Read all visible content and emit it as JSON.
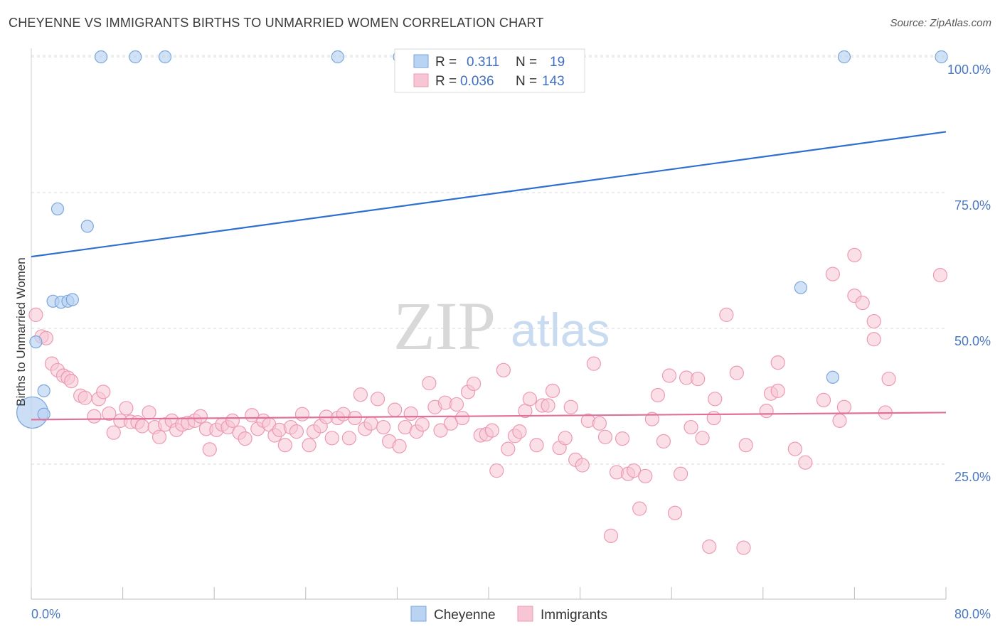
{
  "header": {
    "title": "CHEYENNE VS IMMIGRANTS BIRTHS TO UNMARRIED WOMEN CORRELATION CHART",
    "source": "Source: ZipAtlas.com"
  },
  "watermark": {
    "part1": "ZIP",
    "part2": "atlas"
  },
  "legend": {
    "r_label": "R =",
    "n_label": "N =",
    "rows": [
      {
        "r": "0.311",
        "n": "19"
      },
      {
        "r": "0.036",
        "n": "143"
      }
    ],
    "bottom": [
      "Cheyenne",
      "Immigrants"
    ]
  },
  "colors": {
    "blue_fill": "#b9d3f2",
    "blue_stroke": "#7aa6dc",
    "blue_line": "#2f6fcf",
    "pink_fill": "#f8c5d4",
    "pink_stroke": "#ec9ab5",
    "pink_line": "#e0709a",
    "tick_text": "#4a78c2"
  },
  "chart_data": {
    "type": "scatter",
    "title": "CHEYENNE VS IMMIGRANTS BIRTHS TO UNMARRIED WOMEN CORRELATION CHART",
    "xlabel": "",
    "ylabel": "Births to Unmarried Women",
    "xlim": [
      0,
      80
    ],
    "ylim": [
      0,
      102
    ],
    "x_tick_labels": [
      "0.0%",
      "80.0%"
    ],
    "y_ticks": [
      25,
      50,
      75,
      100
    ],
    "y_tick_labels": [
      "25.0%",
      "50.0%",
      "75.0%",
      "100.0%"
    ],
    "grid": "horizontal dashed",
    "legend_position": "top-center",
    "series": [
      {
        "name": "Cheyenne",
        "r": 0.311,
        "n": 19,
        "trend": {
          "x": [
            0,
            80
          ],
          "y": [
            63.2,
            86.2
          ]
        },
        "points": [
          [
            0.1,
            34.5
          ],
          [
            0.4,
            47.5
          ],
          [
            1.1,
            34.2
          ],
          [
            1.1,
            38.5
          ],
          [
            1.9,
            55.0
          ],
          [
            2.3,
            72.0
          ],
          [
            2.6,
            54.8
          ],
          [
            3.2,
            55.0
          ],
          [
            3.6,
            55.3
          ],
          [
            4.9,
            68.8
          ],
          [
            6.1,
            100.0
          ],
          [
            9.1,
            100.0
          ],
          [
            11.7,
            100.0
          ],
          [
            26.8,
            100.0
          ],
          [
            32.2,
            100.0
          ],
          [
            67.3,
            57.5
          ],
          [
            70.1,
            41.0
          ],
          [
            71.1,
            100.0
          ],
          [
            79.6,
            100.0
          ]
        ],
        "big_point": [
          0.1,
          34.5
        ]
      },
      {
        "name": "Immigrants",
        "r": 0.036,
        "n": 143,
        "trend": {
          "x": [
            0,
            80
          ],
          "y": [
            33.2,
            34.5
          ]
        },
        "points": [
          [
            0.4,
            52.5
          ],
          [
            0.9,
            48.5
          ],
          [
            1.3,
            48.2
          ],
          [
            1.8,
            43.5
          ],
          [
            2.3,
            42.3
          ],
          [
            2.8,
            41.3
          ],
          [
            3.2,
            40.9
          ],
          [
            3.5,
            40.3
          ],
          [
            4.3,
            37.6
          ],
          [
            4.7,
            37.2
          ],
          [
            5.5,
            33.8
          ],
          [
            5.9,
            37.0
          ],
          [
            6.3,
            38.3
          ],
          [
            6.8,
            34.3
          ],
          [
            7.2,
            30.8
          ],
          [
            7.8,
            33.0
          ],
          [
            8.3,
            35.3
          ],
          [
            8.7,
            32.8
          ],
          [
            9.3,
            32.7
          ],
          [
            9.7,
            32.0
          ],
          [
            10.3,
            34.5
          ],
          [
            10.8,
            31.8
          ],
          [
            11.2,
            30.0
          ],
          [
            11.7,
            32.3
          ],
          [
            12.3,
            33.0
          ],
          [
            12.7,
            31.3
          ],
          [
            13.2,
            32.3
          ],
          [
            13.7,
            32.6
          ],
          [
            14.3,
            33.0
          ],
          [
            14.8,
            33.8
          ],
          [
            15.3,
            31.5
          ],
          [
            15.6,
            27.7
          ],
          [
            16.2,
            31.3
          ],
          [
            16.7,
            32.3
          ],
          [
            17.2,
            31.8
          ],
          [
            17.6,
            33.0
          ],
          [
            18.2,
            30.8
          ],
          [
            18.7,
            29.7
          ],
          [
            19.3,
            34.0
          ],
          [
            19.8,
            31.5
          ],
          [
            20.3,
            33.0
          ],
          [
            20.8,
            32.3
          ],
          [
            21.3,
            30.3
          ],
          [
            21.7,
            31.3
          ],
          [
            22.2,
            28.5
          ],
          [
            22.7,
            31.8
          ],
          [
            23.2,
            31.0
          ],
          [
            23.7,
            34.2
          ],
          [
            24.3,
            28.5
          ],
          [
            24.7,
            31.0
          ],
          [
            25.3,
            32.0
          ],
          [
            25.8,
            33.7
          ],
          [
            26.3,
            29.8
          ],
          [
            26.8,
            33.5
          ],
          [
            27.3,
            34.2
          ],
          [
            27.8,
            29.8
          ],
          [
            28.3,
            33.5
          ],
          [
            28.8,
            37.8
          ],
          [
            29.2,
            31.5
          ],
          [
            29.7,
            32.5
          ],
          [
            30.3,
            37.0
          ],
          [
            30.8,
            31.8
          ],
          [
            31.3,
            29.2
          ],
          [
            31.8,
            35.0
          ],
          [
            32.2,
            28.3
          ],
          [
            32.7,
            31.8
          ],
          [
            33.2,
            34.3
          ],
          [
            33.7,
            31.0
          ],
          [
            34.2,
            32.3
          ],
          [
            34.8,
            39.9
          ],
          [
            35.3,
            35.5
          ],
          [
            35.8,
            31.2
          ],
          [
            36.2,
            36.3
          ],
          [
            36.7,
            32.5
          ],
          [
            37.2,
            36.0
          ],
          [
            37.7,
            33.5
          ],
          [
            38.2,
            38.3
          ],
          [
            38.7,
            39.8
          ],
          [
            39.3,
            30.3
          ],
          [
            39.8,
            30.5
          ],
          [
            40.3,
            31.2
          ],
          [
            40.7,
            23.8
          ],
          [
            41.3,
            42.3
          ],
          [
            41.7,
            27.8
          ],
          [
            42.3,
            30.2
          ],
          [
            42.7,
            31.0
          ],
          [
            43.2,
            34.8
          ],
          [
            43.6,
            37.0
          ],
          [
            44.2,
            28.5
          ],
          [
            44.7,
            35.8
          ],
          [
            45.2,
            35.8
          ],
          [
            45.6,
            38.5
          ],
          [
            46.2,
            28.0
          ],
          [
            46.7,
            29.8
          ],
          [
            47.2,
            35.5
          ],
          [
            47.6,
            25.8
          ],
          [
            48.2,
            24.8
          ],
          [
            48.7,
            33.0
          ],
          [
            49.2,
            43.5
          ],
          [
            49.7,
            32.5
          ],
          [
            50.2,
            30.0
          ],
          [
            50.7,
            11.8
          ],
          [
            51.2,
            23.5
          ],
          [
            51.7,
            29.7
          ],
          [
            52.2,
            23.2
          ],
          [
            52.7,
            23.8
          ],
          [
            53.2,
            16.8
          ],
          [
            53.7,
            22.8
          ],
          [
            54.3,
            33.3
          ],
          [
            54.8,
            37.7
          ],
          [
            55.3,
            29.2
          ],
          [
            55.8,
            41.3
          ],
          [
            56.3,
            16.0
          ],
          [
            56.8,
            23.2
          ],
          [
            57.3,
            40.9
          ],
          [
            57.7,
            31.8
          ],
          [
            58.3,
            40.7
          ],
          [
            58.7,
            29.8
          ],
          [
            59.3,
            9.8
          ],
          [
            59.7,
            33.5
          ],
          [
            59.8,
            37.0
          ],
          [
            60.8,
            52.5
          ],
          [
            61.7,
            41.8
          ],
          [
            62.3,
            9.6
          ],
          [
            62.5,
            28.5
          ],
          [
            64.3,
            34.8
          ],
          [
            64.7,
            38.0
          ],
          [
            65.3,
            43.7
          ],
          [
            65.3,
            38.5
          ],
          [
            66.8,
            27.8
          ],
          [
            67.7,
            25.3
          ],
          [
            69.3,
            36.8
          ],
          [
            70.1,
            60.0
          ],
          [
            70.7,
            33.0
          ],
          [
            71.1,
            35.5
          ],
          [
            72.0,
            63.5
          ],
          [
            72.0,
            56.0
          ],
          [
            72.7,
            54.7
          ],
          [
            73.7,
            51.3
          ],
          [
            73.7,
            48.0
          ],
          [
            74.7,
            34.5
          ],
          [
            75.0,
            40.7
          ],
          [
            79.5,
            59.8
          ]
        ]
      }
    ]
  }
}
